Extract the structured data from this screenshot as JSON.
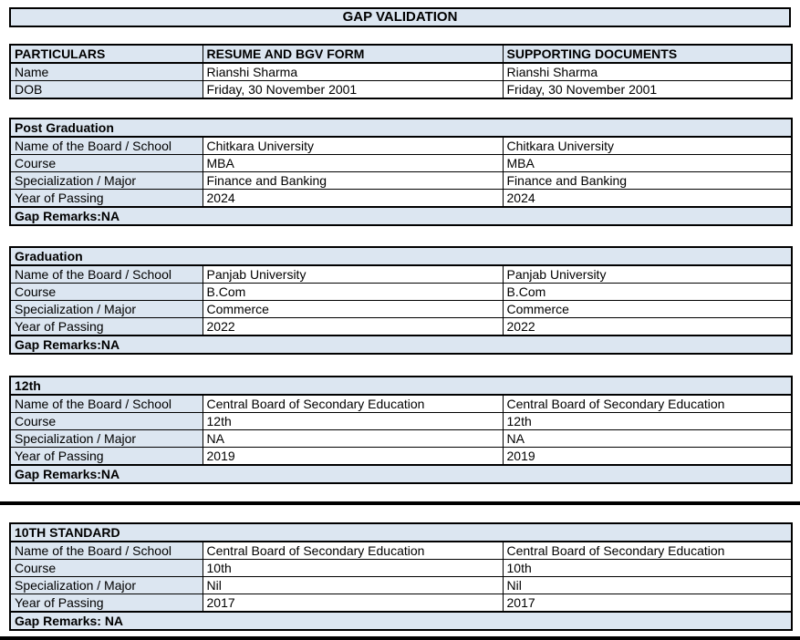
{
  "page": {
    "title": "GAP VALIDATION"
  },
  "colors": {
    "header_fill": "#dce6f1",
    "cell_fill": "#ffffff",
    "border": "#000000",
    "text": "#000000"
  },
  "summary_table": {
    "headers": [
      "PARTICULARS",
      "RESUME AND BGV FORM",
      "SUPPORTING DOCUMENTS"
    ],
    "rows": [
      {
        "label": "Name",
        "resume": "Rianshi Sharma",
        "supporting": "Rianshi Sharma"
      },
      {
        "label": "DOB",
        "resume": "Friday, 30 November 2001",
        "supporting": "Friday, 30 November 2001"
      }
    ]
  },
  "sections": [
    {
      "title": "Post Graduation",
      "rows": [
        {
          "label": "Name of the Board / School",
          "resume": "Chitkara University",
          "supporting": "Chitkara University"
        },
        {
          "label": "Course",
          "resume": "MBA",
          "supporting": "MBA"
        },
        {
          "label": "Specialization / Major",
          "resume": "Finance and Banking",
          "supporting": "Finance and Banking"
        },
        {
          "label": "Year of Passing",
          "resume": "2024",
          "supporting": "2024"
        }
      ],
      "gap_remarks": "Gap Remarks:NA"
    },
    {
      "title": "Graduation",
      "rows": [
        {
          "label": "Name of the Board / School",
          "resume": "Panjab University",
          "supporting": "Panjab University"
        },
        {
          "label": "Course",
          "resume": "B.Com",
          "supporting": "B.Com"
        },
        {
          "label": "Specialization / Major",
          "resume": "Commerce",
          "supporting": "Commerce"
        },
        {
          "label": "Year of Passing",
          "resume": "2022",
          "supporting": "2022"
        }
      ],
      "gap_remarks": "Gap Remarks:NA"
    },
    {
      "title": "12th",
      "rows": [
        {
          "label": "Name of the Board / School",
          "resume": "Central Board of Secondary Education",
          "supporting": "Central Board of Secondary Education"
        },
        {
          "label": "Course",
          "resume": "12th",
          "supporting": "12th"
        },
        {
          "label": "Specialization / Major",
          "resume": "NA",
          "supporting": "NA"
        },
        {
          "label": "Year of Passing",
          "resume": "2019",
          "supporting": "2019"
        }
      ],
      "gap_remarks": "Gap Remarks:NA"
    },
    {
      "title": "10TH STANDARD",
      "rows": [
        {
          "label": "Name of the Board / School",
          "resume": "Central Board of Secondary Education",
          "supporting": "Central Board of Secondary Education"
        },
        {
          "label": "Course",
          "resume": "10th",
          "supporting": "10th"
        },
        {
          "label": "Specialization / Major",
          "resume": "Nil",
          "supporting": "Nil"
        },
        {
          "label": "Year of Passing",
          "resume": "2017",
          "supporting": "2017"
        }
      ],
      "gap_remarks": "Gap Remarks: NA"
    }
  ]
}
